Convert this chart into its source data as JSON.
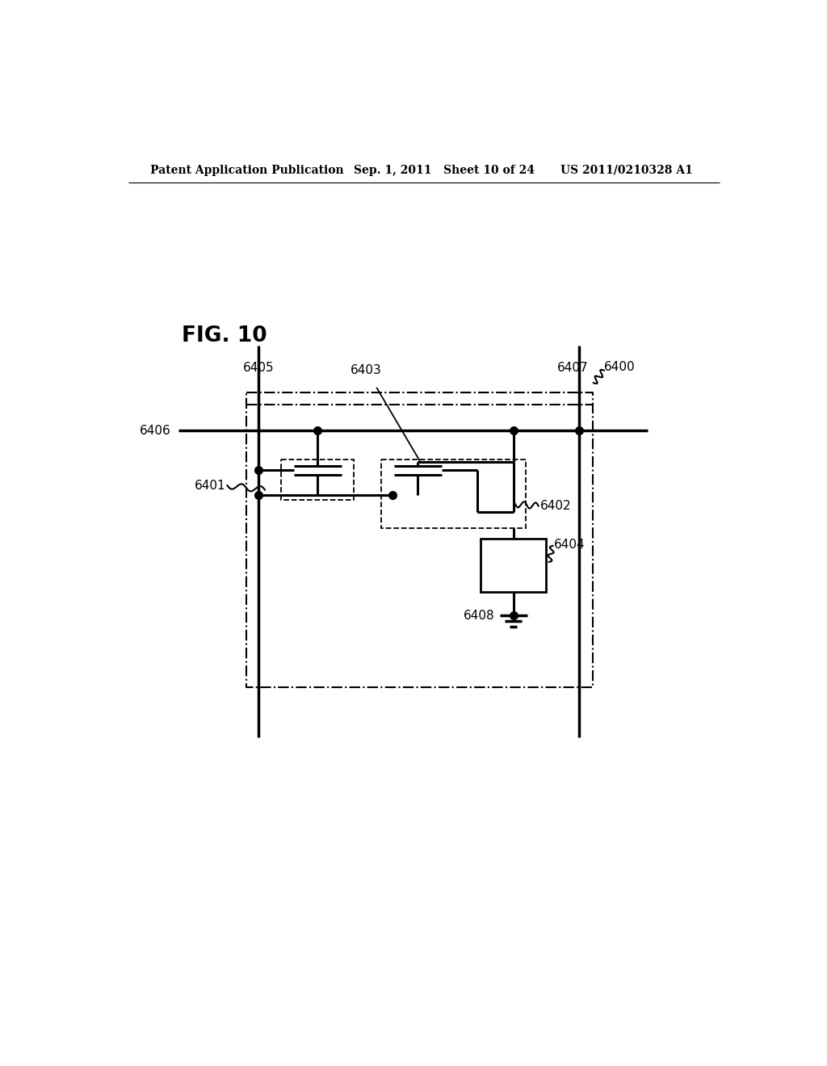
{
  "bg_color": "#ffffff",
  "header_left": "Patent Application Publication",
  "header_mid": "Sep. 1, 2011   Sheet 10 of 24",
  "header_right": "US 2011/0210328 A1",
  "fig_label": "FIG. 10",
  "lw_bus": 2.5,
  "lw_wire": 2.2,
  "lw_dash": 1.5,
  "dot_ms": 7,
  "font_size_hdr": 10,
  "font_size_fig": 19,
  "font_size_lbl": 11
}
